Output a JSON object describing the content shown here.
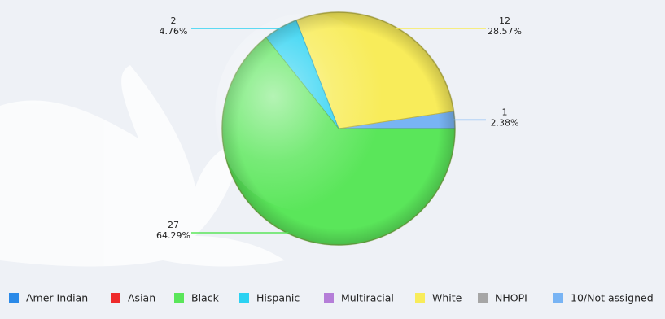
{
  "chart_data": {
    "type": "pie",
    "categories": [
      "Amer Indian",
      "Asian",
      "Black",
      "Hispanic",
      "Multiracial",
      "White",
      "NHOPI",
      "10/Not assigned"
    ],
    "colors": [
      "#2b8ae8",
      "#ee2b2b",
      "#5ae65a",
      "#2bd2f2",
      "#b57ed8",
      "#f8ec5a",
      "#a6a6a6",
      "#78b4f4"
    ],
    "slices": [
      {
        "category": "10/Not assigned",
        "count": 1,
        "percent": "2.38%",
        "color": "#78b4f4"
      },
      {
        "category": "White",
        "count": 12,
        "percent": "28.57%",
        "color": "#f8ec5a"
      },
      {
        "category": "Hispanic",
        "count": 2,
        "percent": "4.76%",
        "color": "#2bd2f2"
      },
      {
        "category": "Black",
        "count": 27,
        "percent": "64.29%",
        "color": "#5ae65a"
      }
    ],
    "legend_position": "bottom"
  }
}
